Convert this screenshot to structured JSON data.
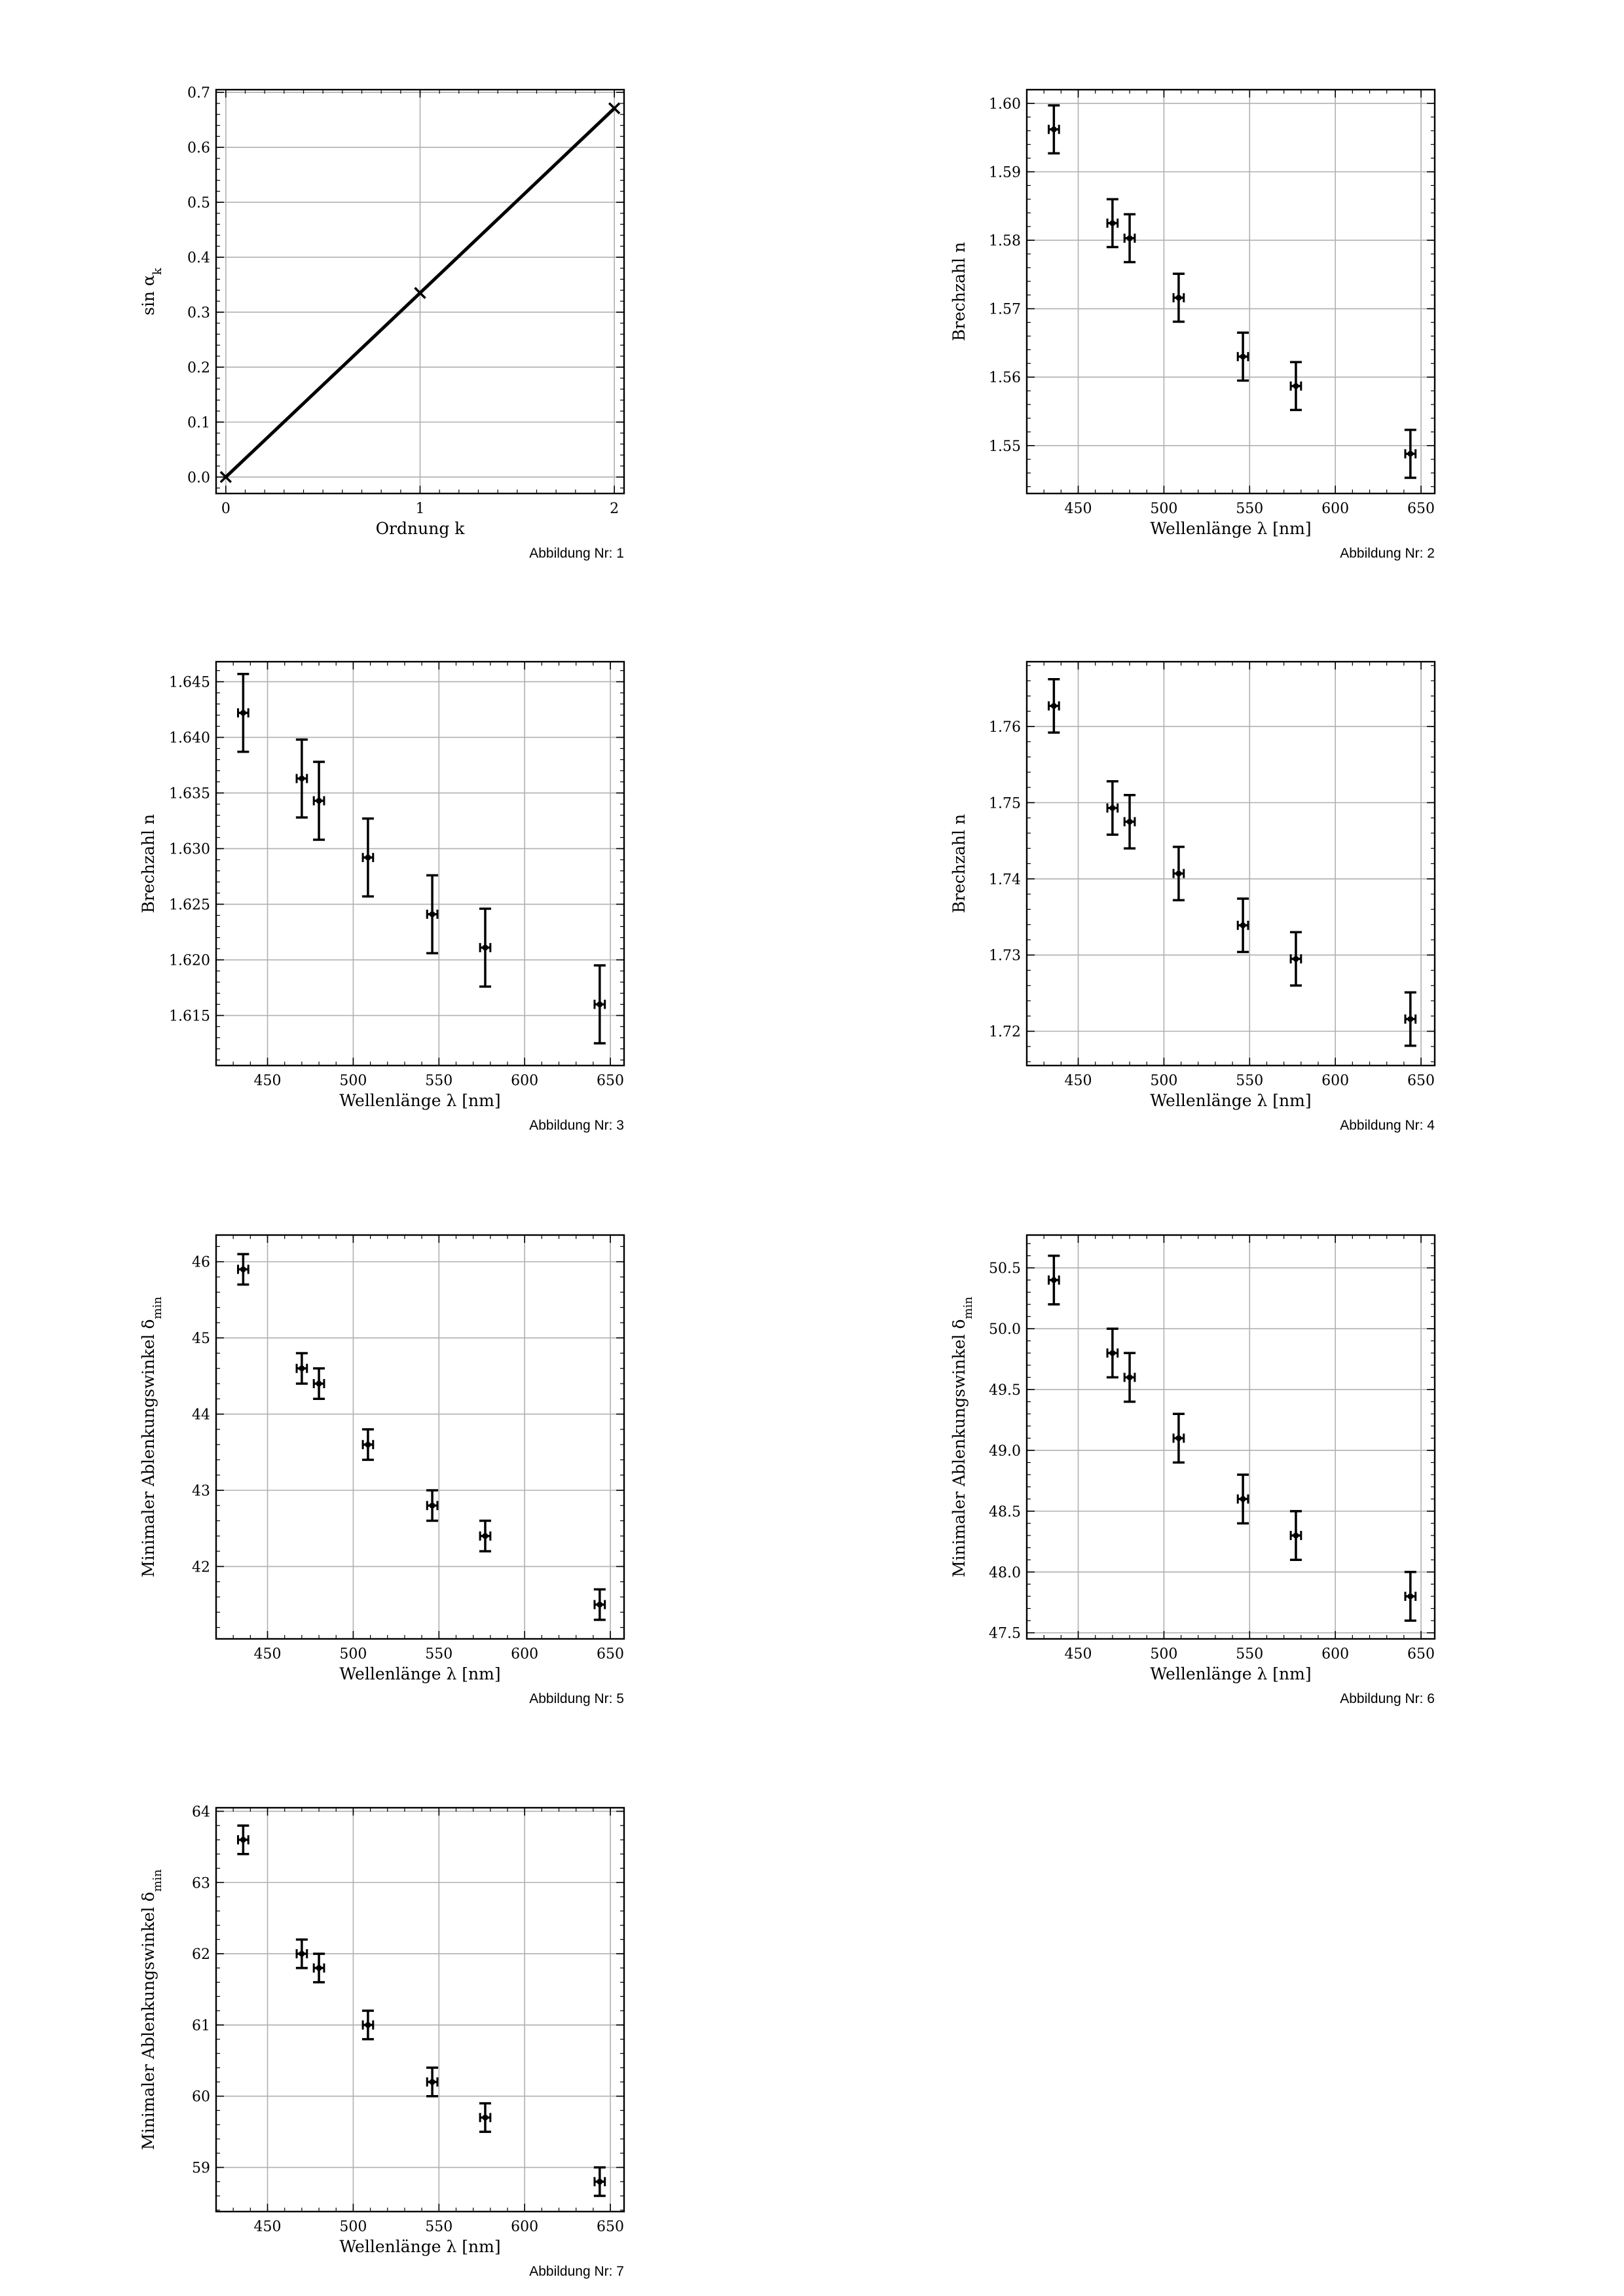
{
  "chart_data": [
    {
      "type": "line",
      "caption": "Abbildung Nr: 1",
      "xlabel": "Ordnung k",
      "ylabel": "sin α_k",
      "xlim": [
        -0.05,
        2.05
      ],
      "ylim": [
        -0.03,
        0.705
      ],
      "xticks": [
        0,
        1,
        2
      ],
      "yticks": [
        0.0,
        0.1,
        0.2,
        0.3,
        0.4,
        0.5,
        0.6,
        0.7
      ],
      "ytick_decimals": 1,
      "grid": true,
      "x": [
        0,
        1,
        2
      ],
      "y": [
        0.0,
        0.335,
        0.671
      ]
    },
    {
      "type": "scatter",
      "caption": "Abbildung Nr: 2",
      "xlabel": "Wellenlänge λ [nm]",
      "ylabel": "Brechzahl n",
      "xlim": [
        420,
        658
      ],
      "ylim": [
        1.543,
        1.602
      ],
      "xticks": [
        450,
        500,
        550,
        600,
        650
      ],
      "yticks": [
        1.55,
        1.56,
        1.57,
        1.58,
        1.59,
        1.6
      ],
      "ytick_decimals": 2,
      "grid": true,
      "x": [
        435.8,
        470.0,
        480.0,
        508.6,
        546.1,
        577.0,
        643.8
      ],
      "xerr": 3,
      "y": [
        1.5962,
        1.5825,
        1.5803,
        1.5716,
        1.563,
        1.5587,
        1.5488
      ],
      "yerr": 0.0035
    },
    {
      "type": "scatter",
      "caption": "Abbildung Nr: 3",
      "xlabel": "Wellenlänge λ [nm]",
      "ylabel": "Brechzahl n",
      "xlim": [
        420,
        658
      ],
      "ylim": [
        1.6105,
        1.6468
      ],
      "xticks": [
        450,
        500,
        550,
        600,
        650
      ],
      "yticks": [
        1.615,
        1.62,
        1.625,
        1.63,
        1.635,
        1.64,
        1.645
      ],
      "ytick_decimals": 3,
      "grid": true,
      "x": [
        435.8,
        470.0,
        480.0,
        508.6,
        546.1,
        577.0,
        643.8
      ],
      "xerr": 3,
      "y": [
        1.6422,
        1.6363,
        1.6343,
        1.6292,
        1.6241,
        1.6211,
        1.616
      ],
      "yerr": 0.0035
    },
    {
      "type": "scatter",
      "caption": "Abbildung Nr: 4",
      "xlabel": "Wellenlänge λ [nm]",
      "ylabel": "Brechzahl n",
      "xlim": [
        420,
        658
      ],
      "ylim": [
        1.7155,
        1.7685
      ],
      "xticks": [
        450,
        500,
        550,
        600,
        650
      ],
      "yticks": [
        1.72,
        1.73,
        1.74,
        1.75,
        1.76
      ],
      "ytick_decimals": 2,
      "grid": true,
      "x": [
        435.8,
        470.0,
        480.0,
        508.6,
        546.1,
        577.0,
        643.8
      ],
      "xerr": 3,
      "y": [
        1.7627,
        1.7493,
        1.7475,
        1.7407,
        1.7339,
        1.7295,
        1.7216
      ],
      "yerr": 0.0035
    },
    {
      "type": "scatter",
      "caption": "Abbildung Nr: 5",
      "xlabel": "Wellenlänge λ [nm]",
      "ylabel": "Minimaler Ablenkungswinkel δ_min",
      "xlim": [
        420,
        658
      ],
      "ylim": [
        41.05,
        46.35
      ],
      "xticks": [
        450,
        500,
        550,
        600,
        650
      ],
      "yticks": [
        42,
        43,
        44,
        45,
        46
      ],
      "ytick_decimals": 0,
      "grid": true,
      "x": [
        435.8,
        470.0,
        480.0,
        508.6,
        546.1,
        577.0,
        643.8
      ],
      "xerr": 3,
      "y": [
        45.9,
        44.6,
        44.4,
        43.6,
        42.8,
        42.4,
        41.5
      ],
      "yerr": 0.2
    },
    {
      "type": "scatter",
      "caption": "Abbildung Nr: 6",
      "xlabel": "Wellenlänge λ [nm]",
      "ylabel": "Minimaler Ablenkungswinkel δ_min",
      "xlim": [
        420,
        658
      ],
      "ylim": [
        47.45,
        50.77
      ],
      "xticks": [
        450,
        500,
        550,
        600,
        650
      ],
      "yticks": [
        47.5,
        48.0,
        48.5,
        49.0,
        49.5,
        50.0,
        50.5
      ],
      "ytick_decimals": 1,
      "grid": true,
      "x": [
        435.8,
        470.0,
        480.0,
        508.6,
        546.1,
        577.0,
        643.8
      ],
      "xerr": 3,
      "y": [
        50.4,
        49.8,
        49.6,
        49.1,
        48.6,
        48.3,
        47.8
      ],
      "yerr": 0.2
    },
    {
      "type": "scatter",
      "caption": "Abbildung Nr: 7",
      "xlabel": "Wellenlänge λ [nm]",
      "ylabel": "Minimaler Ablenkungswinkel δ_min",
      "xlim": [
        420,
        658
      ],
      "ylim": [
        58.38,
        64.05
      ],
      "xticks": [
        450,
        500,
        550,
        600,
        650
      ],
      "yticks": [
        59,
        60,
        61,
        62,
        63,
        64
      ],
      "ytick_decimals": 0,
      "grid": true,
      "x": [
        435.8,
        470.0,
        480.0,
        508.6,
        546.1,
        577.0,
        643.8
      ],
      "xerr": 3,
      "y": [
        63.6,
        62.0,
        61.8,
        61.0,
        60.2,
        59.7,
        58.8
      ],
      "yerr": 0.2
    }
  ]
}
